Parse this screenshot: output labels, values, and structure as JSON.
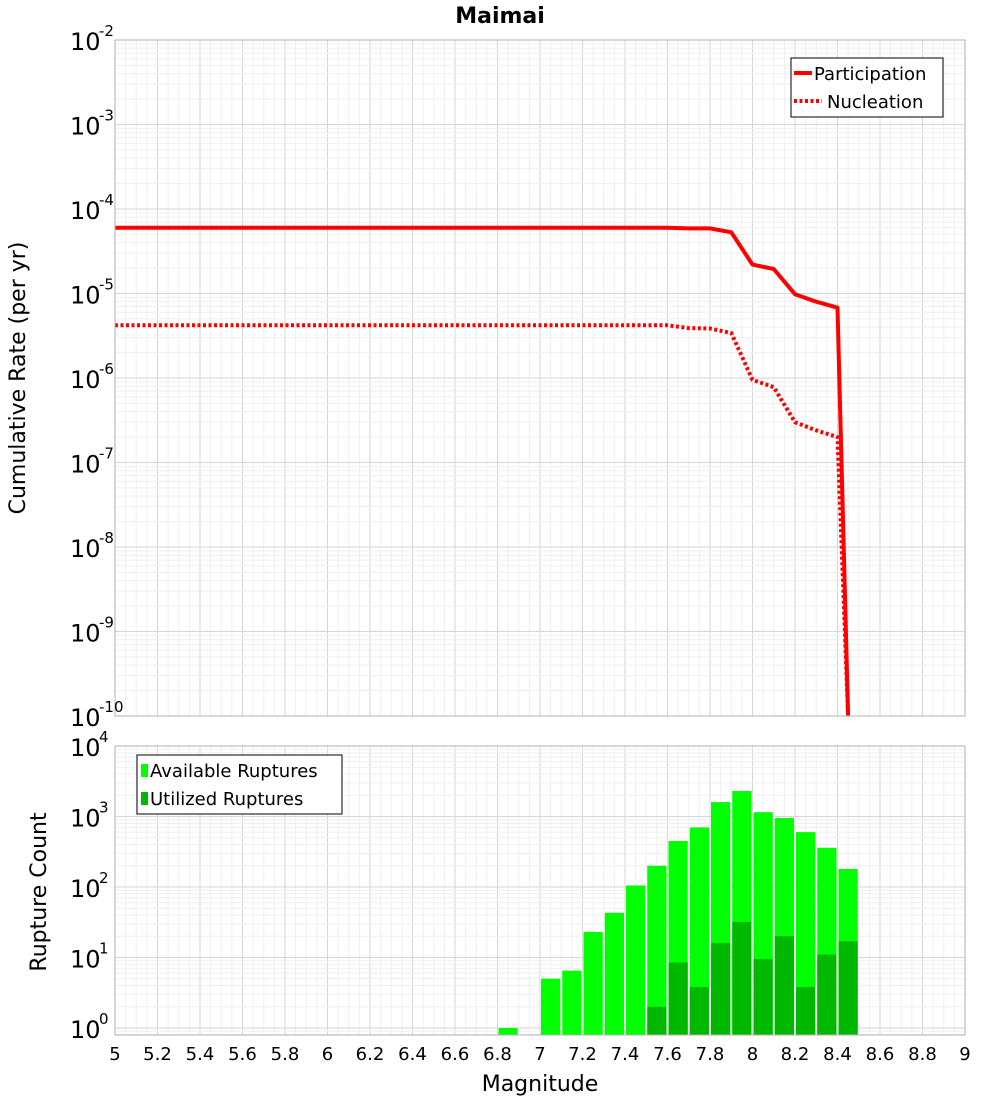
{
  "title": "Maimai",
  "chart_data": [
    {
      "type": "line",
      "title": "Maimai",
      "xlabel": "Magnitude",
      "ylabel": "Cumulative Rate (per yr)",
      "xlim": [
        5,
        9
      ],
      "ylim_log10": [
        -10,
        -2
      ],
      "yscale": "log",
      "y_tick_exponents": [
        "-2",
        "-3",
        "-4",
        "-5",
        "-6",
        "-7",
        "-8",
        "-9",
        "-10"
      ],
      "legend": "top-right",
      "series": [
        {
          "name": "Participation",
          "style": "solid",
          "color": "#ff0000",
          "x": [
            5.0,
            7.6,
            7.7,
            7.8,
            7.9,
            8.0,
            8.1,
            8.2,
            8.3,
            8.4,
            8.45
          ],
          "y": [
            6e-05,
            6e-05,
            5.9e-05,
            5.9e-05,
            5.3e-05,
            2.2e-05,
            1.95e-05,
            9.8e-06,
            8e-06,
            6.8e-06,
            1e-10
          ]
        },
        {
          "name": "Nucleation",
          "style": "dotted",
          "color": "#ff0000",
          "x": [
            5.0,
            7.6,
            7.7,
            7.8,
            7.9,
            8.0,
            8.1,
            8.2,
            8.3,
            8.4,
            8.45
          ],
          "y": [
            4.2e-06,
            4.2e-06,
            3.9e-06,
            3.85e-06,
            3.4e-06,
            9.5e-07,
            7.8e-07,
            3e-07,
            2.4e-07,
            2e-07,
            1e-10
          ]
        }
      ]
    },
    {
      "type": "bar",
      "xlabel": "Magnitude",
      "ylabel": "Rupture Count",
      "xlim": [
        5,
        9
      ],
      "ylim_log10": [
        -0.1,
        4
      ],
      "yscale": "log",
      "y_tick_exponents": [
        "0",
        "1",
        "2",
        "3",
        "4"
      ],
      "x_ticks": [
        "5",
        "5.2",
        "5.4",
        "5.6",
        "5.8",
        "6",
        "6.2",
        "6.4",
        "6.6",
        "6.8",
        "7",
        "7.2",
        "7.4",
        "7.6",
        "7.8",
        "8",
        "8.2",
        "8.4",
        "8.6",
        "8.8",
        "9"
      ],
      "legend": "top-left",
      "bin_width": 0.1,
      "series": [
        {
          "name": "Available Ruptures",
          "color": "#00ff00",
          "x": [
            6.85,
            7.05,
            7.15,
            7.25,
            7.35,
            7.45,
            7.55,
            7.65,
            7.75,
            7.85,
            7.95,
            8.05,
            8.15,
            8.25,
            8.35,
            8.45
          ],
          "values": [
            1,
            5,
            6.5,
            23,
            43,
            105,
            200,
            450,
            700,
            1600,
            2300,
            1150,
            950,
            600,
            360,
            180
          ]
        },
        {
          "name": "Utilized Ruptures",
          "color": "#00b800",
          "x": [
            7.55,
            7.65,
            7.75,
            7.85,
            7.95,
            8.05,
            8.15,
            8.25,
            8.35,
            8.45
          ],
          "values": [
            2,
            8.5,
            3.8,
            16,
            32,
            9.5,
            20,
            3.8,
            11,
            17
          ]
        }
      ]
    }
  ]
}
